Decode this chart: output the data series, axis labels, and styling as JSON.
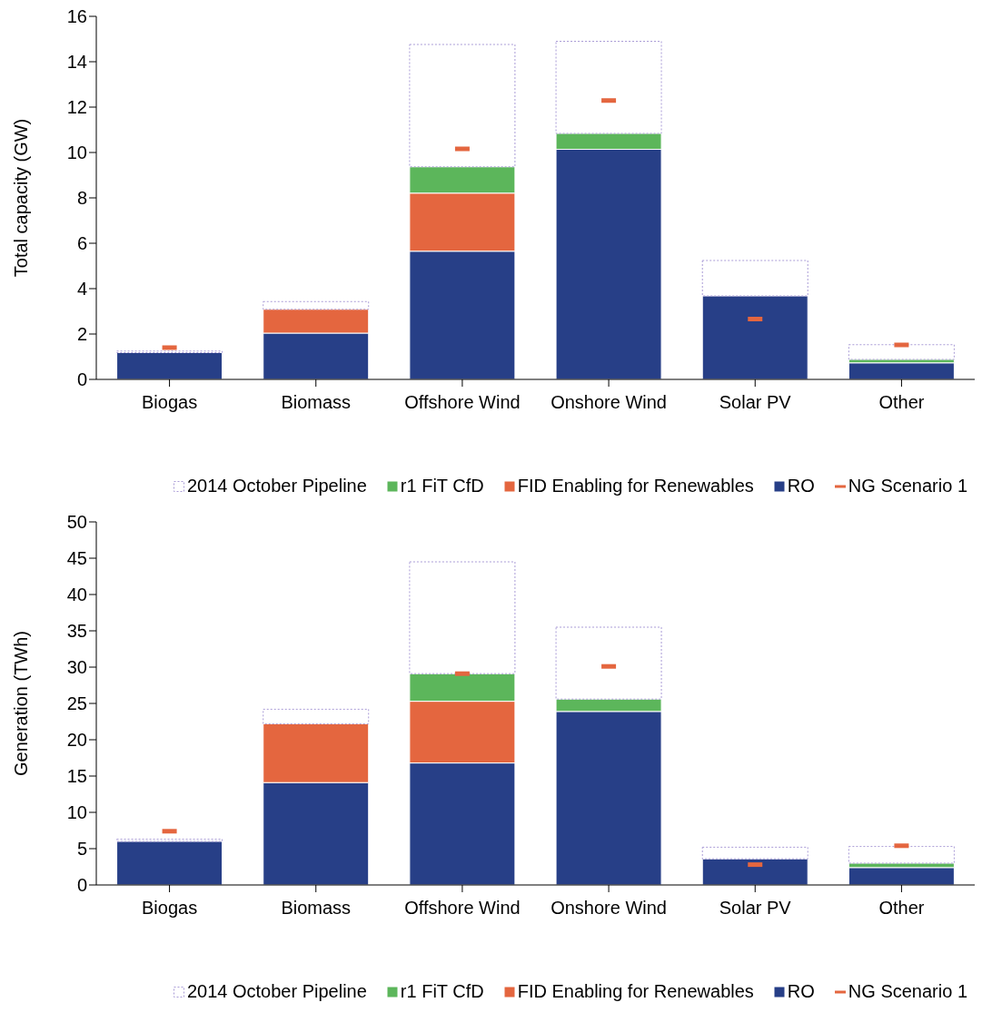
{
  "chart_data": [
    {
      "type": "bar",
      "stacked": true,
      "ylabel": "Total capacity (GW)",
      "categories": [
        "Biogas",
        "Biomass",
        "Offshore Wind",
        "Onshore Wind",
        "Solar PV",
        "Other"
      ],
      "ylim": [
        0,
        16
      ],
      "yticks": [
        0,
        2,
        4,
        6,
        8,
        10,
        12,
        14,
        16
      ],
      "legend": "bottom",
      "series": [
        {
          "name": "RO",
          "color": "#273f87",
          "values": [
            1.18,
            2.04,
            5.65,
            10.14,
            3.68,
            0.73
          ]
        },
        {
          "name": "FID Enabling for Renewables",
          "color": "#e4663f",
          "values": [
            0,
            1.05,
            2.56,
            0,
            0,
            0
          ]
        },
        {
          "name": "r1 FiT CfD",
          "color": "#5cb65b",
          "values": [
            0,
            0,
            1.16,
            0.7,
            0,
            0.15
          ]
        },
        {
          "name": "2014 October Pipeline",
          "color": "#a99bd6",
          "line_style": "dotted",
          "values": [
            0.07,
            0.34,
            5.39,
            4.06,
            1.56,
            0.65
          ]
        },
        {
          "name": "NG Scenario 1",
          "type": "scatter",
          "color": "#e4663f",
          "values": [
            1.4,
            null,
            10.16,
            12.29,
            2.66,
            1.52
          ]
        }
      ]
    },
    {
      "type": "bar",
      "stacked": true,
      "ylabel": "Generation (TWh)",
      "categories": [
        "Biogas",
        "Biomass",
        "Offshore Wind",
        "Onshore Wind",
        "Solar PV",
        "Other"
      ],
      "ylim": [
        0,
        50
      ],
      "yticks": [
        0,
        5,
        10,
        15,
        20,
        25,
        30,
        35,
        40,
        45,
        50
      ],
      "legend": "bottom",
      "series": [
        {
          "name": "RO",
          "color": "#273f87",
          "values": [
            6.0,
            14.1,
            16.8,
            23.9,
            3.6,
            2.4
          ]
        },
        {
          "name": "FID Enabling for Renewables",
          "color": "#e4663f",
          "values": [
            0,
            8.1,
            8.5,
            0,
            0,
            0
          ]
        },
        {
          "name": "r1 FiT CfD",
          "color": "#5cb65b",
          "values": [
            0,
            0,
            3.8,
            1.7,
            0,
            0.6
          ]
        },
        {
          "name": "2014 October Pipeline",
          "color": "#a99bd6",
          "line_style": "dotted",
          "values": [
            0.3,
            2.0,
            15.4,
            9.9,
            1.6,
            2.3
          ]
        },
        {
          "name": "NG Scenario 1",
          "type": "scatter",
          "color": "#e4663f",
          "values": [
            7.4,
            null,
            29.1,
            30.1,
            2.8,
            5.4
          ]
        }
      ]
    }
  ]
}
